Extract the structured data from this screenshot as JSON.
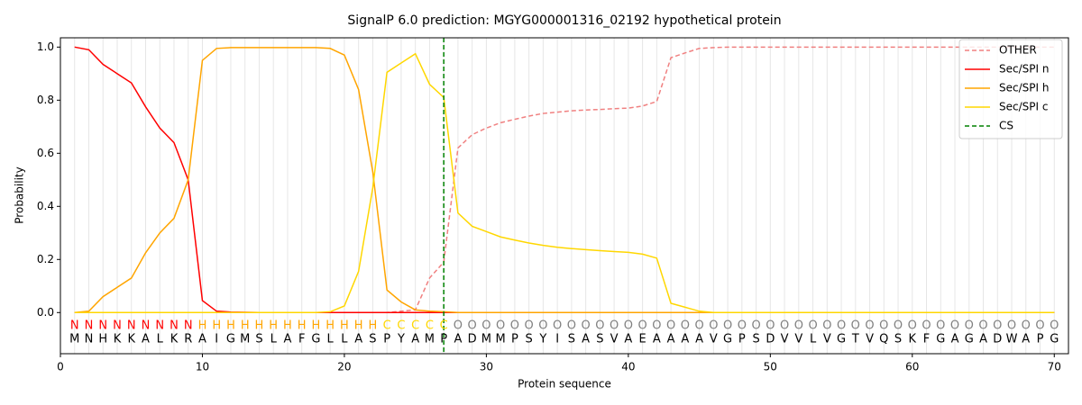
{
  "chart_data": {
    "type": "line",
    "title": "SignalP 6.0 prediction: MGYG000001316_02192 hypothetical protein",
    "x_label": "Protein sequence",
    "y_label": "Probability",
    "xlim": [
      0,
      71
    ],
    "ylim": [
      -0.155,
      1.035
    ],
    "xticks": [
      0,
      10,
      20,
      30,
      40,
      50,
      60,
      70
    ],
    "yticks": [
      {
        "value": 0,
        "label": "0.0"
      },
      {
        "value": 0.2,
        "label": "0.2"
      },
      {
        "value": 0.4,
        "label": "0.4"
      },
      {
        "value": 0.6,
        "label": "0.6"
      },
      {
        "value": 0.8,
        "label": "0.8"
      },
      {
        "value": 1,
        "label": "1.0"
      }
    ],
    "legend": "upper right",
    "x": [
      1,
      2,
      3,
      4,
      5,
      6,
      7,
      8,
      9,
      10,
      11,
      12,
      13,
      14,
      15,
      16,
      17,
      18,
      19,
      20,
      21,
      22,
      23,
      24,
      25,
      26,
      27,
      28,
      29,
      30,
      31,
      32,
      33,
      34,
      35,
      36,
      37,
      38,
      39,
      40,
      41,
      42,
      43,
      44,
      45,
      46,
      47,
      48,
      49,
      50,
      51,
      52,
      53,
      54,
      55,
      56,
      57,
      58,
      59,
      60,
      61,
      62,
      63,
      64,
      65,
      66,
      67,
      68,
      69,
      70
    ],
    "sequence": [
      "M",
      "N",
      "H",
      "K",
      "K",
      "A",
      "L",
      "K",
      "R",
      "A",
      "I",
      "G",
      "M",
      "S",
      "L",
      "A",
      "F",
      "G",
      "L",
      "L",
      "A",
      "S",
      "P",
      "Y",
      "A",
      "M",
      "P",
      "A",
      "D",
      "M",
      "M",
      "P",
      "S",
      "Y",
      "I",
      "S",
      "A",
      "S",
      "V",
      "A",
      "E",
      "A",
      "A",
      "A",
      "A",
      "V",
      "G",
      "P",
      "S",
      "D",
      "V",
      "V",
      "L",
      "V",
      "G",
      "T",
      "V",
      "Q",
      "S",
      "K",
      "F",
      "G",
      "A",
      "G",
      "A",
      "D",
      "W",
      "A",
      "P",
      "G"
    ],
    "regions": [
      "N",
      "N",
      "N",
      "N",
      "N",
      "N",
      "N",
      "N",
      "N",
      "H",
      "H",
      "H",
      "H",
      "H",
      "H",
      "H",
      "H",
      "H",
      "H",
      "H",
      "H",
      "H",
      "C",
      "C",
      "C",
      "C",
      "C",
      "O",
      "O",
      "O",
      "O",
      "O",
      "O",
      "O",
      "O",
      "O",
      "O",
      "O",
      "O",
      "O",
      "O",
      "O",
      "O",
      "O",
      "O",
      "O",
      "O",
      "O",
      "O",
      "O",
      "O",
      "O",
      "O",
      "O",
      "O",
      "O",
      "O",
      "O",
      "O",
      "O",
      "O",
      "O",
      "O",
      "O",
      "O",
      "O",
      "O",
      "O",
      "O",
      "O"
    ],
    "region_colors": {
      "N": "#ff0000",
      "H": "#ffa500",
      "C": "#ffd700",
      "O": "#808080"
    },
    "series": [
      {
        "name": "OTHER",
        "color": "#f08080",
        "dashed": true,
        "values": [
          0,
          0,
          0,
          0,
          0,
          0,
          0,
          0,
          0,
          0,
          0,
          0,
          0,
          0,
          0,
          0,
          0,
          0,
          0,
          0,
          0,
          0,
          0,
          0.005,
          0.01,
          0.13,
          0.19,
          0.62,
          0.67,
          0.695,
          0.715,
          0.728,
          0.74,
          0.75,
          0.755,
          0.76,
          0.763,
          0.765,
          0.768,
          0.77,
          0.778,
          0.795,
          0.96,
          0.978,
          0.995,
          0.998,
          1,
          1,
          1,
          1,
          1,
          1,
          1,
          1,
          1,
          1,
          1,
          1,
          1,
          1,
          1,
          1,
          1,
          1,
          1,
          1,
          1,
          1,
          1,
          1
        ]
      },
      {
        "name": "Sec/SPI n",
        "color": "#ff0000",
        "dashed": false,
        "values": [
          1.0,
          0.99,
          0.935,
          0.9,
          0.865,
          0.775,
          0.695,
          0.64,
          0.5,
          0.045,
          0.005,
          0.002,
          0.001,
          0,
          0,
          0,
          0,
          0,
          0,
          0,
          0,
          0,
          0,
          0,
          0,
          0,
          0,
          0,
          0,
          0,
          0,
          0,
          0,
          0,
          0,
          0,
          0,
          0,
          0,
          0,
          0,
          0,
          0,
          0,
          0,
          0,
          0,
          0,
          0,
          0,
          0,
          0,
          0,
          0,
          0,
          0,
          0,
          0,
          0,
          0,
          0,
          0,
          0,
          0,
          0,
          0,
          0,
          0,
          0,
          0
        ]
      },
      {
        "name": "Sec/SPI h",
        "color": "#ffa500",
        "dashed": false,
        "values": [
          0,
          0.005,
          0.06,
          0.095,
          0.13,
          0.225,
          0.3,
          0.355,
          0.5,
          0.95,
          0.995,
          0.998,
          0.998,
          0.998,
          0.998,
          0.998,
          0.998,
          0.998,
          0.995,
          0.97,
          0.84,
          0.53,
          0.085,
          0.04,
          0.01,
          0.005,
          0.003,
          0,
          0,
          0,
          0,
          0,
          0,
          0,
          0,
          0,
          0,
          0,
          0,
          0,
          0,
          0,
          0,
          0,
          0,
          0,
          0,
          0,
          0,
          0,
          0,
          0,
          0,
          0,
          0,
          0,
          0,
          0,
          0,
          0,
          0,
          0,
          0,
          0,
          0,
          0,
          0,
          0,
          0,
          0
        ]
      },
      {
        "name": "Sec/SPI c",
        "color": "#ffd700",
        "dashed": false,
        "values": [
          0,
          0,
          0,
          0,
          0,
          0,
          0,
          0,
          0,
          0,
          0,
          0,
          0,
          0,
          0,
          0,
          0,
          0,
          0.003,
          0.025,
          0.155,
          0.47,
          0.905,
          0.94,
          0.975,
          0.86,
          0.81,
          0.375,
          0.325,
          0.305,
          0.285,
          0.273,
          0.262,
          0.253,
          0.246,
          0.241,
          0.237,
          0.233,
          0.23,
          0.227,
          0.22,
          0.205,
          0.035,
          0.02,
          0.005,
          0,
          0,
          0,
          0,
          0,
          0,
          0,
          0,
          0,
          0,
          0,
          0,
          0,
          0,
          0,
          0,
          0,
          0,
          0,
          0,
          0,
          0,
          0,
          0,
          0
        ]
      }
    ],
    "cs": {
      "name": "CS",
      "color": "#008000",
      "x": 27
    }
  }
}
